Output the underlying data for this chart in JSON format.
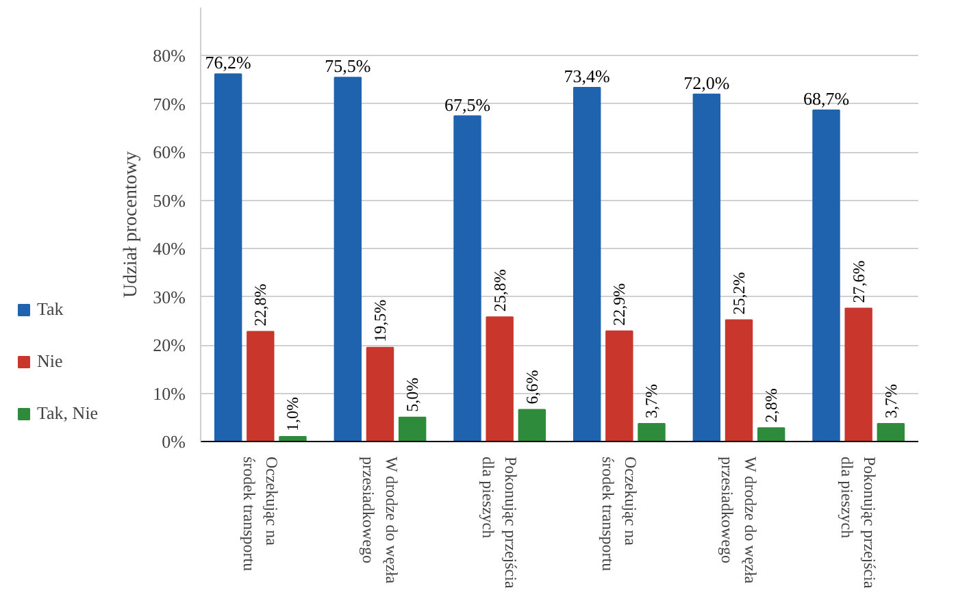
{
  "chart_data": {
    "type": "bar",
    "ylabel": "Udział procentowy",
    "categories": [
      "Oczekując na środek transportu",
      "W drodze do węzła przesiadkowego",
      "Pokonując przejścia dla pieszych",
      "Oczekując na środek transportu",
      "W drodze do węzła przesiadkowego",
      "Pokonując przejścia dla pieszych"
    ],
    "series": [
      {
        "name": "Tak",
        "color": "#1f62ad",
        "values": [
          76.2,
          75.5,
          67.5,
          73.4,
          72.0,
          68.7
        ],
        "value_labels": [
          "76,2%",
          "75,5%",
          "67,5%",
          "73,4%",
          "72,0%",
          "68,7%"
        ]
      },
      {
        "name": "Nie",
        "color": "#c9372c",
        "values": [
          22.8,
          19.5,
          25.8,
          22.9,
          25.2,
          27.6
        ],
        "value_labels": [
          "22,8%",
          "19,5%",
          "25,8%",
          "22,9%",
          "25,2%",
          "27,6%"
        ]
      },
      {
        "name": "Tak, Nie",
        "color": "#2e8b3c",
        "values": [
          1.0,
          5.0,
          6.6,
          3.7,
          2.8,
          3.7
        ],
        "value_labels": [
          "1,0%",
          "5,0%",
          "6,6%",
          "3,7%",
          "2,8%",
          "3,7%"
        ]
      }
    ],
    "ylim": [
      0,
      90
    ],
    "yticks": [
      {
        "value": 0,
        "label": "0%"
      },
      {
        "value": 10,
        "label": "10%"
      },
      {
        "value": 20,
        "label": "20%"
      },
      {
        "value": 30,
        "label": "30%"
      },
      {
        "value": 40,
        "label": "40%"
      },
      {
        "value": 50,
        "label": "50%"
      },
      {
        "value": 60,
        "label": "60%"
      },
      {
        "value": 70,
        "label": "70%"
      },
      {
        "value": 80,
        "label": "80%"
      }
    ],
    "grid": "y",
    "legend": "bottom left"
  }
}
